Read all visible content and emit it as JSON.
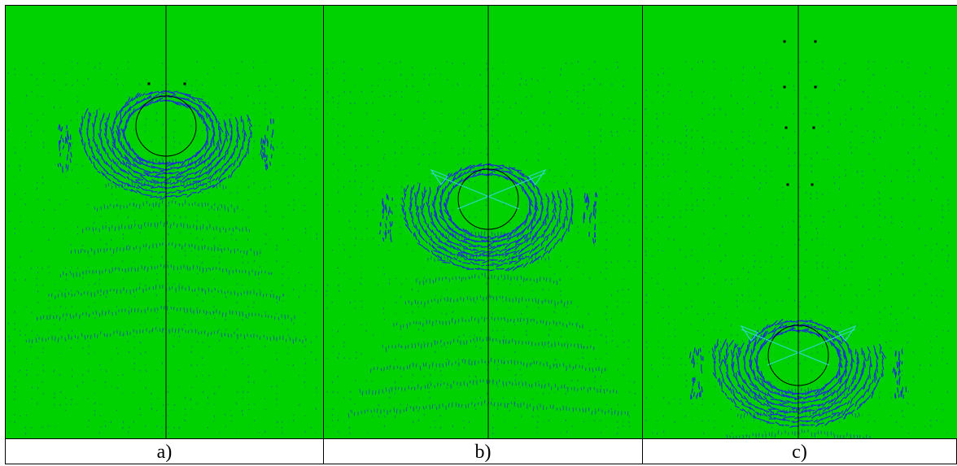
{
  "figure": {
    "background_color": "#00d100",
    "arrow_color": "#1f2fd6",
    "accent_arrow_color": "#2fd6c8",
    "line_color": "#000000",
    "panels": [
      {
        "id": "a",
        "caption": "a)"
      },
      {
        "id": "b",
        "caption": "b)"
      },
      {
        "id": "c",
        "caption": "c)"
      }
    ]
  }
}
